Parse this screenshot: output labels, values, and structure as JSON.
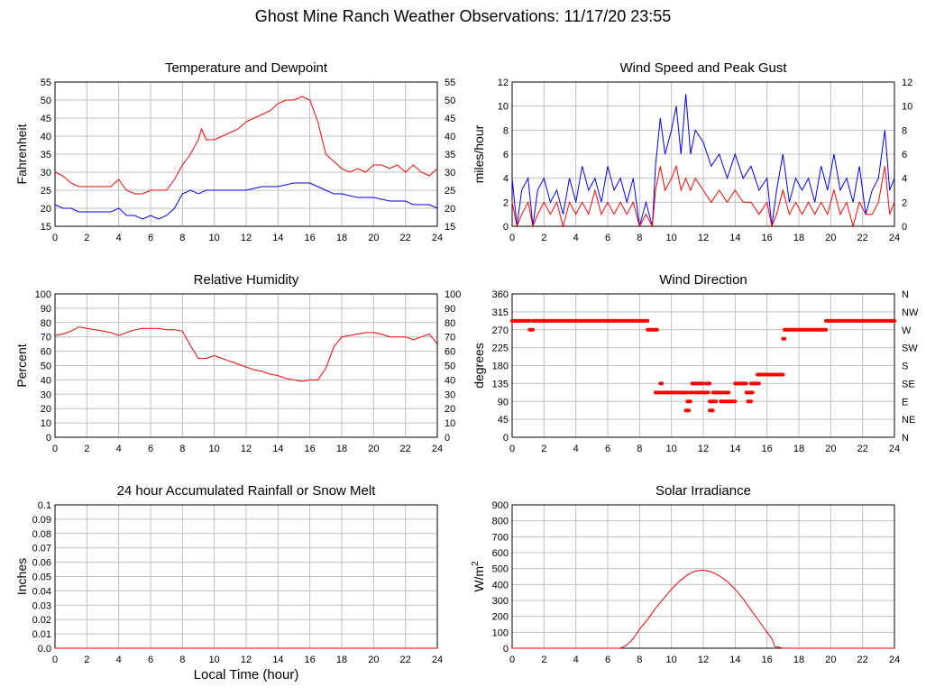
{
  "page_title": "Ghost Mine Ranch Weather Observations: 11/17/20 23:55",
  "x_axis_label": "Local Time (hour)",
  "colors": {
    "red": "#ff0000",
    "blue": "#0000ff",
    "grid": "#c0c0c0"
  },
  "chart_data": [
    {
      "id": "temp",
      "type": "line",
      "title": "Temperature and Dewpoint",
      "ylabel": "Fahrenheit",
      "xlabel": "",
      "xlim": [
        0,
        24
      ],
      "ylim": [
        15,
        55
      ],
      "xticks": [
        "0",
        "2",
        "4",
        "6",
        "8",
        "10",
        "12",
        "14",
        "16",
        "18",
        "20",
        "22",
        "24"
      ],
      "yticks": [
        "15",
        "20",
        "25",
        "30",
        "35",
        "40",
        "45",
        "50",
        "55"
      ],
      "right_yticks": [
        "15",
        "20",
        "25",
        "30",
        "35",
        "40",
        "45",
        "50",
        "55"
      ],
      "series": [
        {
          "color": "#ff0000",
          "x": [
            0,
            0.5,
            1,
            1.5,
            2,
            2.5,
            3,
            3.5,
            4,
            4.3,
            4.5,
            5,
            5.5,
            6,
            6.5,
            7,
            7.5,
            8,
            8.5,
            9,
            9.2,
            9.5,
            10,
            10.5,
            11,
            11.5,
            12,
            12.5,
            13,
            13.5,
            14,
            14.5,
            15,
            15.5,
            16,
            16.5,
            17,
            17.5,
            18,
            18.5,
            19,
            19.5,
            20,
            20.5,
            21,
            21.5,
            22,
            22.5,
            23,
            23.5,
            24
          ],
          "y": [
            30,
            29,
            27,
            26,
            26,
            26,
            26,
            26,
            28,
            26,
            25,
            24,
            24,
            25,
            25,
            25,
            28,
            32,
            35,
            39,
            42,
            39,
            39,
            40,
            41,
            42,
            44,
            45,
            46,
            47,
            49,
            50,
            50,
            51,
            50,
            44,
            35,
            33,
            31,
            30,
            31,
            30,
            32,
            32,
            31,
            32,
            30,
            32,
            30,
            29,
            31
          ]
        },
        {
          "color": "#0000ff",
          "x": [
            0,
            0.5,
            1,
            1.5,
            2,
            2.5,
            3,
            3.5,
            4,
            4.5,
            5,
            5.5,
            6,
            6.5,
            7,
            7.5,
            8,
            8.5,
            9,
            9.5,
            10,
            11,
            12,
            13,
            14,
            15,
            16,
            16.5,
            17,
            17.5,
            18,
            19,
            20,
            21,
            22,
            22.5,
            23,
            23.5,
            24
          ],
          "y": [
            21,
            20,
            20,
            19,
            19,
            19,
            19,
            19,
            20,
            18,
            18,
            17,
            18,
            17,
            18,
            20,
            24,
            25,
            24,
            25,
            25,
            25,
            25,
            26,
            26,
            27,
            27,
            26,
            25,
            24,
            24,
            23,
            23,
            22,
            22,
            21,
            21,
            21,
            20
          ]
        }
      ]
    },
    {
      "id": "wind",
      "type": "line",
      "title": "Wind Speed and Peak Gust",
      "ylabel": "miles/hour",
      "xlabel": "",
      "xlim": [
        0,
        24
      ],
      "ylim": [
        0,
        12
      ],
      "xticks": [
        "0",
        "2",
        "4",
        "6",
        "8",
        "10",
        "12",
        "14",
        "16",
        "18",
        "20",
        "22",
        "24"
      ],
      "yticks": [
        "0",
        "2",
        "4",
        "6",
        "8",
        "10",
        "12"
      ],
      "right_yticks": [
        "0",
        "2",
        "4",
        "6",
        "8",
        "10",
        "12"
      ],
      "series": [
        {
          "color": "#0000ff",
          "x": [
            0,
            0.3,
            0.6,
            1,
            1.3,
            1.6,
            2,
            2.4,
            2.8,
            3.2,
            3.6,
            4,
            4.4,
            4.8,
            5.2,
            5.6,
            6,
            6.4,
            6.8,
            7.2,
            7.6,
            8,
            8.4,
            8.8,
            9,
            9.3,
            9.6,
            10,
            10.3,
            10.6,
            10.9,
            11.2,
            11.5,
            12,
            12.5,
            13,
            13.5,
            14,
            14.5,
            15,
            15.5,
            16,
            16.3,
            16.6,
            17,
            17.4,
            17.8,
            18.2,
            18.6,
            19,
            19.4,
            19.8,
            20.2,
            20.6,
            21,
            21.4,
            21.8,
            22.2,
            22.6,
            23,
            23.4,
            23.7,
            24
          ],
          "y": [
            4,
            0,
            3,
            4,
            0,
            3,
            4,
            2,
            3,
            1,
            4,
            2,
            5,
            3,
            4,
            2,
            5,
            3,
            4,
            2,
            4,
            0,
            2,
            0,
            5,
            9,
            6,
            8,
            10,
            6,
            11,
            6,
            8,
            7,
            5,
            6,
            4,
            6,
            4,
            5,
            3,
            4,
            0,
            3,
            6,
            2,
            4,
            3,
            4,
            2,
            5,
            3,
            6,
            3,
            4,
            2,
            5,
            1,
            3,
            4,
            8,
            3,
            4
          ]
        },
        {
          "color": "#ff0000",
          "x": [
            0,
            0.3,
            0.6,
            1,
            1.3,
            1.6,
            2,
            2.4,
            2.8,
            3.2,
            3.6,
            4,
            4.4,
            4.8,
            5.2,
            5.6,
            6,
            6.4,
            6.8,
            7.2,
            7.6,
            8,
            8.4,
            8.8,
            9,
            9.3,
            9.6,
            10,
            10.3,
            10.6,
            10.9,
            11.2,
            11.5,
            12,
            12.5,
            13,
            13.5,
            14,
            14.5,
            15,
            15.5,
            16,
            16.3,
            16.6,
            17,
            17.4,
            17.8,
            18.2,
            18.6,
            19,
            19.4,
            19.8,
            20.2,
            20.6,
            21,
            21.4,
            21.8,
            22.2,
            22.6,
            23,
            23.4,
            23.7,
            24
          ],
          "y": [
            2,
            0,
            1,
            2,
            0,
            1,
            2,
            1,
            2,
            0,
            2,
            1,
            2,
            1,
            3,
            1,
            2,
            1,
            2,
            1,
            2,
            0,
            1,
            0,
            3,
            5,
            3,
            4,
            5,
            3,
            4,
            3,
            4,
            3,
            2,
            3,
            2,
            3,
            2,
            2,
            1,
            2,
            0,
            1,
            3,
            1,
            2,
            1,
            2,
            1,
            2,
            1,
            3,
            1,
            2,
            0,
            2,
            1,
            1,
            2,
            5,
            1,
            2
          ]
        }
      ]
    },
    {
      "id": "rh",
      "type": "line",
      "title": "Relative Humidity",
      "ylabel": "Percent",
      "xlabel": "",
      "xlim": [
        0,
        24
      ],
      "ylim": [
        0,
        100
      ],
      "xticks": [
        "0",
        "2",
        "4",
        "6",
        "8",
        "10",
        "12",
        "14",
        "16",
        "18",
        "20",
        "22",
        "24"
      ],
      "yticks": [
        "0",
        "10",
        "20",
        "30",
        "40",
        "50",
        "60",
        "70",
        "80",
        "90",
        "100"
      ],
      "right_yticks": [
        "0",
        "10",
        "20",
        "30",
        "40",
        "50",
        "60",
        "70",
        "80",
        "90",
        "100"
      ],
      "series": [
        {
          "color": "#ff0000",
          "x": [
            0,
            0.5,
            1,
            1.5,
            2,
            2.5,
            3,
            3.5,
            4,
            4.5,
            5,
            5.5,
            6,
            6.5,
            7,
            7.5,
            8,
            8.5,
            9,
            9.5,
            10,
            10.5,
            11,
            11.5,
            12,
            12.5,
            13,
            13.5,
            14,
            14.5,
            15,
            15.5,
            16,
            16.5,
            17,
            17.5,
            18,
            18.5,
            19,
            19.5,
            20,
            20.5,
            21,
            21.5,
            22,
            22.5,
            23,
            23.5,
            24
          ],
          "y": [
            71,
            72,
            74,
            77,
            76,
            75,
            74,
            73,
            71,
            73,
            75,
            76,
            76,
            76,
            75,
            75,
            74,
            64,
            55,
            55,
            57,
            55,
            53,
            51,
            49,
            47,
            46,
            44,
            43,
            41,
            40,
            39,
            40,
            40,
            48,
            63,
            70,
            71,
            72,
            73,
            73,
            72,
            70,
            70,
            70,
            68,
            70,
            72,
            65
          ]
        }
      ]
    },
    {
      "id": "wdir",
      "type": "scatter",
      "title": "Wind Direction",
      "ylabel": "degrees",
      "xlabel": "",
      "xlim": [
        0,
        24
      ],
      "ylim": [
        0,
        360
      ],
      "xticks": [
        "0",
        "2",
        "4",
        "6",
        "8",
        "10",
        "12",
        "14",
        "16",
        "18",
        "20",
        "22",
        "24"
      ],
      "yticks": [
        "0",
        "45",
        "90",
        "135",
        "180",
        "225",
        "270",
        "315",
        "360"
      ],
      "right_yticks": [
        "N",
        "NE",
        "E",
        "SE",
        "S",
        "SW",
        "W",
        "NW",
        "N"
      ],
      "series": [
        {
          "color": "#ff0000",
          "segments": [
            [
              0,
              1.1,
              292.5
            ],
            [
              1.1,
              1.3,
              270
            ],
            [
              1.3,
              8.5,
              292.5
            ],
            [
              8.5,
              9.1,
              270
            ],
            [
              9.0,
              10.6,
              112.5
            ],
            [
              9.3,
              9.4,
              135
            ],
            [
              10.6,
              11.0,
              112.5
            ],
            [
              10.9,
              11.1,
              67.5
            ],
            [
              11.0,
              11.2,
              90
            ],
            [
              11.2,
              11.3,
              112.5
            ],
            [
              11.3,
              12.0,
              135
            ],
            [
              11.5,
              12.3,
              112.5
            ],
            [
              12.2,
              12.4,
              135
            ],
            [
              12.4,
              12.6,
              67.5
            ],
            [
              12.4,
              12.8,
              90
            ],
            [
              12.6,
              13.1,
              112.5
            ],
            [
              13.1,
              14.0,
              90
            ],
            [
              13.2,
              13.6,
              112.5
            ],
            [
              14.0,
              14.7,
              135
            ],
            [
              14.7,
              15.1,
              112.5
            ],
            [
              14.8,
              15.0,
              90
            ],
            [
              15.0,
              15.5,
              135
            ],
            [
              15.4,
              17.0,
              157.5
            ],
            [
              17.0,
              17.1,
              247.5
            ],
            [
              17.1,
              19.7,
              270
            ],
            [
              19.7,
              24.0,
              292.5
            ]
          ]
        }
      ]
    },
    {
      "id": "rain",
      "type": "line",
      "title": "24 hour Accumulated Rainfall or Snow Melt",
      "ylabel": "Inches",
      "xlabel": "Local Time (hour)",
      "xlim": [
        0,
        24
      ],
      "ylim": [
        0,
        0.1
      ],
      "xticks": [
        "0",
        "2",
        "4",
        "6",
        "8",
        "10",
        "12",
        "14",
        "16",
        "18",
        "20",
        "22",
        "24"
      ],
      "yticks": [
        "0.0",
        "0.01",
        "0.02",
        "0.03",
        "0.04",
        "0.05",
        "0.06",
        "0.07",
        "0.08",
        "0.09",
        "0.1"
      ],
      "right_yticks": [],
      "series": [
        {
          "color": "#ff0000",
          "x": [
            0,
            24
          ],
          "y": [
            0,
            0
          ]
        }
      ]
    },
    {
      "id": "solar",
      "type": "line",
      "title": "Solar Irradiance",
      "ylabel": "W/m",
      "ylabel_sup": "2",
      "xlabel": "",
      "xlim": [
        0,
        24
      ],
      "ylim": [
        0,
        900
      ],
      "xticks": [
        "0",
        "2",
        "4",
        "6",
        "8",
        "10",
        "12",
        "14",
        "16",
        "18",
        "20",
        "22",
        "24"
      ],
      "yticks": [
        "0",
        "100",
        "200",
        "300",
        "400",
        "500",
        "600",
        "700",
        "800",
        "900"
      ],
      "right_yticks": [],
      "series": [
        {
          "color": "#ff0000",
          "x": [
            0,
            6.8,
            7.2,
            7.6,
            8,
            8.5,
            9,
            9.5,
            10,
            10.5,
            11,
            11.5,
            12,
            12.5,
            13,
            13.5,
            14,
            14.5,
            15,
            15.5,
            16,
            16.3,
            16.5,
            16.8,
            17,
            24
          ],
          "y": [
            0,
            0,
            20,
            60,
            120,
            180,
            250,
            310,
            370,
            420,
            460,
            485,
            490,
            480,
            455,
            420,
            370,
            310,
            240,
            170,
            100,
            60,
            10,
            5,
            0,
            0
          ]
        }
      ]
    }
  ]
}
